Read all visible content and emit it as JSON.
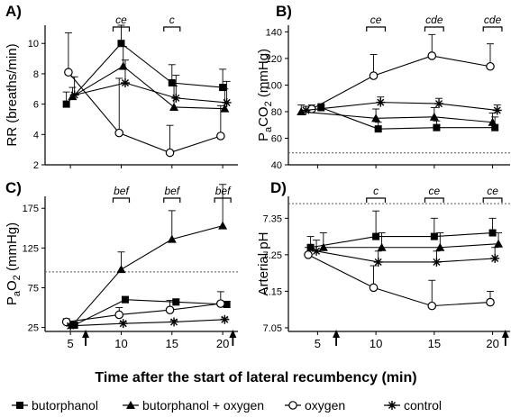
{
  "colors": {
    "ink": "#000000",
    "refline": "#555555"
  },
  "xlabel": "Time after the start of lateral recumbency (min)",
  "legend": [
    {
      "label": "butorphanol",
      "marker": "square"
    },
    {
      "label": "butorphanol + oxygen",
      "marker": "triangle"
    },
    {
      "label": "oxygen",
      "marker": "circle"
    },
    {
      "label": "control",
      "marker": "asterisk"
    }
  ],
  "chart_data": [
    {
      "type": "line",
      "panel": "A)",
      "ylabel": "RR (breaths/min)",
      "x": [
        5,
        10,
        15,
        20
      ],
      "xticks": [],
      "xlim": [
        2.5,
        21.5
      ],
      "ylim": [
        2,
        11.2
      ],
      "yticks": [
        2,
        4,
        6,
        8,
        10
      ],
      "series": [
        {
          "name": "butorphanol",
          "marker": "square",
          "x": [
            4.6,
            10,
            15,
            20
          ],
          "values": [
            6.0,
            10.0,
            7.4,
            7.1
          ],
          "err": [
            0.8,
            1.2,
            1.2,
            1.2
          ]
        },
        {
          "name": "butorphanol + oxygen",
          "marker": "triangle",
          "x": [
            5.2,
            10.2,
            15.2,
            20.2
          ],
          "values": [
            6.5,
            8.5,
            5.8,
            5.7
          ],
          "err": [
            0.6,
            1.3,
            1.4,
            1.3
          ]
        },
        {
          "name": "oxygen",
          "marker": "circle",
          "x": [
            4.8,
            9.8,
            14.8,
            19.8
          ],
          "values": [
            8.1,
            4.1,
            2.8,
            3.9
          ],
          "err": [
            2.6,
            3.6,
            1.8,
            2.0
          ]
        },
        {
          "name": "control",
          "marker": "asterisk",
          "x": [
            5.4,
            10.4,
            15.4,
            20.4
          ],
          "values": [
            6.6,
            7.4,
            6.4,
            6.1
          ],
          "err": [
            1.2,
            1.5,
            1.5,
            1.4
          ]
        }
      ],
      "significance": [
        {
          "x0": 9.2,
          "x1": 10.8,
          "label": "ce"
        },
        {
          "x0": 14.2,
          "x1": 15.8,
          "label": "c"
        }
      ],
      "arrows": []
    },
    {
      "type": "line",
      "panel": "B)",
      "ylabel": "PaCO2 (mmHg)",
      "ylabel_main": "P",
      "ylabel_sub": "a",
      "ylabel_mid": "CO",
      "ylabel_sub2": "2",
      "ylabel_tail": " (mmHg)",
      "x": [
        5,
        10,
        15,
        20
      ],
      "xticks": [],
      "xlim": [
        2.5,
        21.5
      ],
      "ylim": [
        40,
        145
      ],
      "yticks": [
        40,
        60,
        80,
        100,
        120,
        140
      ],
      "reference_line": 49,
      "series": [
        {
          "name": "butorphanol",
          "marker": "square",
          "x": [
            5.3,
            10.2,
            15.2,
            20.2
          ],
          "values": [
            83,
            67,
            68,
            68
          ],
          "err": [
            3,
            5,
            5,
            8
          ]
        },
        {
          "name": "butorphanol + oxygen",
          "marker": "triangle",
          "x": [
            3.6,
            10,
            15,
            20
          ],
          "values": [
            80,
            75,
            76,
            72
          ],
          "err": [
            5,
            7,
            7,
            7
          ]
        },
        {
          "name": "oxygen",
          "marker": "circle",
          "x": [
            4.5,
            9.8,
            14.8,
            19.8
          ],
          "values": [
            82,
            107,
            122,
            114
          ],
          "err": [
            3,
            16,
            16,
            17
          ]
        },
        {
          "name": "control",
          "marker": "asterisk",
          "x": [
            4.0,
            10.4,
            15.4,
            20.4
          ],
          "values": [
            81,
            87,
            86,
            81
          ],
          "err": [
            3,
            4,
            4,
            4
          ]
        }
      ],
      "significance": [
        {
          "x0": 9.2,
          "x1": 10.8,
          "label": "ce"
        },
        {
          "x0": 14.2,
          "x1": 15.8,
          "label": "cde"
        },
        {
          "x0": 19.2,
          "x1": 20.8,
          "label": "cde"
        }
      ],
      "arrows": []
    },
    {
      "type": "line",
      "panel": "C)",
      "ylabel": "PaO2 (mmHg)",
      "ylabel_main": "P",
      "ylabel_sub": "a",
      "ylabel_mid": "O",
      "ylabel_sub2": "2",
      "ylabel_tail": " (mmHg)",
      "x": [
        5,
        10,
        15,
        20
      ],
      "xticks": [
        5,
        10,
        15,
        20
      ],
      "xlim": [
        2.5,
        21.5
      ],
      "ylim": [
        20,
        190
      ],
      "yticks": [
        25,
        75,
        125,
        175
      ],
      "reference_line": 95,
      "series": [
        {
          "name": "butorphanol",
          "marker": "square",
          "x": [
            5.4,
            10.4,
            15.4,
            20.4
          ],
          "values": [
            28,
            60,
            57,
            54
          ],
          "err": [
            2,
            4,
            4,
            4
          ]
        },
        {
          "name": "butorphanol + oxygen",
          "marker": "triangle",
          "x": [
            5.2,
            10,
            15,
            20
          ],
          "values": [
            28,
            98,
            136,
            153
          ],
          "err": [
            2,
            22,
            36,
            52
          ]
        },
        {
          "name": "oxygen",
          "marker": "circle",
          "x": [
            4.6,
            9.8,
            14.8,
            19.8
          ],
          "values": [
            32,
            41,
            47,
            55
          ],
          "err": [
            4,
            9,
            12,
            15
          ]
        },
        {
          "name": "control",
          "marker": "asterisk",
          "x": [
            5.0,
            10.2,
            15.2,
            20.2
          ],
          "values": [
            27,
            30,
            32,
            35
          ],
          "err": [
            2,
            2,
            2,
            2
          ]
        }
      ],
      "significance": [
        {
          "x0": 9.2,
          "x1": 10.8,
          "label": "bef"
        },
        {
          "x0": 14.2,
          "x1": 15.8,
          "label": "bef"
        },
        {
          "x0": 19.2,
          "x1": 20.8,
          "label": "bef"
        }
      ],
      "arrows": [
        6.5,
        21.0
      ]
    },
    {
      "type": "line",
      "panel": "D)",
      "ylabel": "Arterial pH",
      "x": [
        5,
        10,
        15,
        20
      ],
      "xticks": [
        5,
        10,
        15,
        20
      ],
      "xlim": [
        2.5,
        21.5
      ],
      "ylim": [
        7.04,
        7.41
      ],
      "yticks": [
        7.05,
        7.15,
        7.25,
        7.35
      ],
      "reference_line": 7.39,
      "series": [
        {
          "name": "butorphanol",
          "marker": "square",
          "x": [
            4.4,
            10,
            15,
            20
          ],
          "values": [
            7.27,
            7.3,
            7.3,
            7.31
          ],
          "err": [
            0.03,
            0.07,
            0.05,
            0.04
          ]
        },
        {
          "name": "butorphanol + oxygen",
          "marker": "triangle",
          "x": [
            5.5,
            10.5,
            15.5,
            20.5
          ],
          "values": [
            7.27,
            7.27,
            7.27,
            7.28
          ],
          "err": [
            0.04,
            0.04,
            0.04,
            0.03
          ]
        },
        {
          "name": "oxygen",
          "marker": "circle",
          "x": [
            4.2,
            9.8,
            14.8,
            19.8
          ],
          "values": [
            7.25,
            7.16,
            7.11,
            7.12
          ],
          "err": [
            0.02,
            0.06,
            0.07,
            0.03
          ]
        },
        {
          "name": "control",
          "marker": "asterisk",
          "x": [
            4.9,
            10.2,
            15.2,
            20.2
          ],
          "values": [
            7.26,
            7.23,
            7.23,
            7.24
          ],
          "err": [
            0.03,
            0.03,
            0.03,
            0.03
          ]
        }
      ],
      "significance": [
        {
          "x0": 9.2,
          "x1": 10.8,
          "label": "c"
        },
        {
          "x0": 14.2,
          "x1": 15.8,
          "label": "ce"
        },
        {
          "x0": 19.2,
          "x1": 20.8,
          "label": "ce"
        }
      ],
      "arrows": [
        6.6,
        21.1
      ]
    }
  ]
}
